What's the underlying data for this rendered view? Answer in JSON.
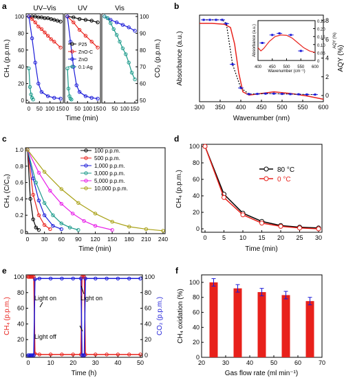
{
  "panels": {
    "a": {
      "letter": "a",
      "subtitles": [
        "UV–Vis",
        "UV",
        "Vis"
      ],
      "ylabel": "CH₄ (p.p.m.)",
      "ylabel_right": "CO₂ (p.p.m.)",
      "xlabel": "Time (min)",
      "ticks_left": [
        "0",
        "20",
        "40",
        "60",
        "80",
        "100"
      ],
      "ticks_right": [
        "50",
        "60",
        "70",
        "80",
        "90",
        "100"
      ],
      "ticks_x": [
        "0",
        "50",
        "100",
        "150"
      ],
      "legend": [
        "P25",
        "ZnO-C",
        "ZnO",
        "0.1-Ag"
      ]
    },
    "b": {
      "letter": "b",
      "xlabel": "Wavenumber (nm)",
      "ylabel": "Absorbance (a.u.)",
      "ylabel_right": "AQY (%)",
      "ticks_x": [
        "300",
        "350",
        "400",
        "450",
        "500",
        "550",
        "600"
      ],
      "ticks_right": [
        "0",
        "2",
        "4",
        "6",
        "8"
      ],
      "inset": {
        "xlabel": "Wavenumber (cm⁻¹)",
        "ylabel": "Absorbance (a.u.)",
        "ylabel_right": "AQY (%)",
        "ticks_x": [
          "400",
          "450",
          "500",
          "550",
          "600"
        ],
        "ticks_right": [
          "0",
          "0.05",
          "0.10",
          "0.15",
          "0.20",
          "0.25"
        ]
      }
    },
    "c": {
      "letter": "c",
      "xlabel": "Time (min)",
      "ylabel": "CH₄ (C/C₀)",
      "ticks_x": [
        "0",
        "30",
        "60",
        "90",
        "120",
        "150",
        "180",
        "210",
        "240"
      ],
      "ticks_y": [
        "0",
        "0.2",
        "0.4",
        "0.6",
        "0.8",
        "1.0"
      ],
      "legend": [
        "100 p.p.m.",
        "500 p.p.m.",
        "1,000 p.p.m.",
        "3,000 p.p.m.",
        "5,000 p.p.m.",
        "10,000 p.p.m."
      ]
    },
    "d": {
      "letter": "d",
      "xlabel": "Time (min)",
      "ylabel": "CH₄ (p.p.m.)",
      "ticks_x": [
        "0",
        "5",
        "10",
        "15",
        "20",
        "25",
        "30"
      ],
      "ticks_y": [
        "0",
        "20",
        "40",
        "60",
        "80",
        "100"
      ],
      "legend": [
        "80 °C",
        "0 °C"
      ]
    },
    "e": {
      "letter": "e",
      "xlabel": "Time (h)",
      "ylabel": "CH₄ (p.p.m.)",
      "ylabel_right": "CO₂ (p.p.m.)",
      "ticks_x": [
        "0",
        "10",
        "20",
        "30",
        "40",
        "50"
      ],
      "ticks_y": [
        "0",
        "20",
        "40",
        "60",
        "80",
        "100"
      ],
      "ticks_right": [
        "0",
        "20",
        "40",
        "60",
        "80",
        "100"
      ],
      "annotations": [
        "Light on",
        "Light off",
        "Light on"
      ]
    },
    "f": {
      "letter": "f",
      "xlabel": "Gas flow rate (ml min⁻¹)",
      "ylabel": "CH₄ oxidation (%)",
      "ticks_x": [
        "20",
        "30",
        "40",
        "50",
        "60",
        "70"
      ],
      "ticks_y": [
        "0",
        "20",
        "40",
        "60",
        "80",
        "100"
      ]
    }
  },
  "colors": {
    "black": "#000000",
    "red": "#e8211b",
    "blue": "#1a1ad8",
    "teal": "#1a9a8a",
    "magenta": "#e81ee8",
    "olive": "#a8a014",
    "grid": "#000000"
  },
  "chart_data": [
    {
      "panel": "a",
      "type": "line",
      "sub_panels": [
        "UV–Vis",
        "UV",
        "Vis"
      ],
      "xlim": [
        0,
        160
      ],
      "ylim": [
        0,
        100
      ],
      "ylim_right": [
        50,
        100
      ],
      "series": [
        {
          "name": "P25",
          "panel": "UV–Vis",
          "x": [
            0,
            15,
            30,
            45,
            60,
            75,
            90,
            105,
            120,
            135,
            150
          ],
          "y": [
            100,
            100,
            100,
            99,
            99,
            98,
            98,
            97,
            96,
            95,
            94
          ]
        },
        {
          "name": "ZnO-C",
          "panel": "UV–Vis",
          "x": [
            0,
            15,
            30,
            45,
            60,
            75,
            90,
            105,
            120,
            150
          ],
          "y": [
            100,
            97,
            93,
            88,
            85,
            81,
            77,
            73,
            70,
            63
          ]
        },
        {
          "name": "ZnO",
          "panel": "UV–Vis",
          "x": [
            0,
            15,
            30,
            45,
            60,
            90,
            120,
            150
          ],
          "y": [
            100,
            74,
            45,
            20,
            10,
            5,
            3,
            2
          ]
        },
        {
          "name": "0.1-Ag",
          "panel": "UV–Vis",
          "x": [
            0,
            5,
            10,
            15,
            20
          ],
          "y": [
            38,
            16,
            7,
            3,
            1
          ]
        },
        {
          "name": "P25",
          "panel": "UV",
          "x": [
            0,
            30,
            60,
            90,
            120,
            150
          ],
          "y": [
            100,
            99,
            97,
            96,
            95,
            93
          ]
        },
        {
          "name": "ZnO-C",
          "panel": "UV",
          "x": [
            0,
            30,
            60,
            90,
            120,
            150
          ],
          "y": [
            100,
            93,
            84,
            77,
            70,
            63
          ]
        },
        {
          "name": "ZnO",
          "panel": "UV",
          "x": [
            0,
            15,
            30,
            45,
            60,
            90,
            120,
            150
          ],
          "y": [
            100,
            70,
            40,
            18,
            10,
            5,
            3,
            2
          ]
        },
        {
          "name": "0.1-Ag",
          "panel": "UV",
          "x": [
            0,
            5,
            10,
            15,
            20
          ],
          "y": [
            38,
            14,
            5,
            2,
            1
          ]
        },
        {
          "name": "ZnO",
          "panel": "Vis",
          "x": [
            0,
            15,
            30,
            60,
            90,
            120,
            150
          ],
          "y": [
            100,
            98,
            96,
            93,
            90,
            87,
            83
          ]
        },
        {
          "name": "0.1-Ag",
          "panel": "Vis",
          "x": [
            0,
            15,
            30,
            45,
            60,
            75,
            90,
            105,
            120,
            135,
            150
          ],
          "y": [
            100,
            98,
            92,
            85,
            78,
            70,
            62,
            55,
            45,
            33,
            25
          ]
        }
      ]
    },
    {
      "panel": "b",
      "type": "line",
      "xlim": [
        300,
        600
      ],
      "ylim_right": [
        0,
        8.5
      ],
      "series": [
        {
          "name": "Absorbance",
          "x": [
            300,
            330,
            360,
            375,
            385,
            395,
            405,
            420,
            450,
            480,
            520,
            560,
            600
          ],
          "y": [
            0.95,
            0.95,
            0.94,
            0.9,
            0.7,
            0.35,
            0.12,
            0.08,
            0.1,
            0.12,
            0.1,
            0.07,
            0.03
          ]
        },
        {
          "name": "AQY",
          "x": [
            310,
            325,
            340,
            355,
            365,
            380,
            400,
            420,
            440,
            460,
            480,
            500,
            520,
            540,
            560,
            580
          ],
          "y": [
            8.0,
            8.0,
            8.0,
            8.0,
            7.6,
            3.3,
            0.8,
            0.15,
            0.17,
            0.2,
            0.2,
            0.17,
            0.15,
            0.13,
            0.11,
            0.1
          ]
        }
      ],
      "inset": {
        "xlim": [
          400,
          600
        ],
        "ylim_right": [
          0,
          0.25
        ],
        "series": [
          {
            "name": "AQY",
            "x": [
              415,
              450,
              475,
              515,
              550
            ],
            "y": [
              0.11,
              0.16,
              0.17,
              0.16,
              0.06
            ]
          }
        ]
      }
    },
    {
      "panel": "c",
      "type": "line",
      "xlim": [
        0,
        240
      ],
      "ylim": [
        0,
        1.0
      ],
      "series": [
        {
          "name": "100 p.p.m.",
          "x": [
            0,
            5,
            10,
            15,
            20
          ],
          "y": [
            1.0,
            0.4,
            0.15,
            0.05,
            0.02
          ]
        },
        {
          "name": "500 p.p.m.",
          "x": [
            0,
            10,
            20,
            30,
            40
          ],
          "y": [
            1.0,
            0.45,
            0.2,
            0.08,
            0.03
          ]
        },
        {
          "name": "1,000 p.p.m.",
          "x": [
            0,
            10,
            20,
            30,
            45,
            60
          ],
          "y": [
            1.0,
            0.65,
            0.38,
            0.2,
            0.07,
            0.03
          ]
        },
        {
          "name": "3,000 p.p.m.",
          "x": [
            0,
            15,
            30,
            45,
            60,
            75,
            90
          ],
          "y": [
            1.0,
            0.6,
            0.35,
            0.2,
            0.1,
            0.05,
            0.02
          ]
        },
        {
          "name": "5,000 p.p.m.",
          "x": [
            0,
            20,
            40,
            60,
            80,
            100,
            120,
            150
          ],
          "y": [
            1.0,
            0.72,
            0.5,
            0.34,
            0.22,
            0.13,
            0.07,
            0.02
          ]
        },
        {
          "name": "10,000 p.p.m.",
          "x": [
            0,
            30,
            60,
            90,
            120,
            150,
            180,
            210,
            240
          ],
          "y": [
            1.0,
            0.73,
            0.52,
            0.35,
            0.22,
            0.12,
            0.06,
            0.03,
            0.01
          ]
        }
      ]
    },
    {
      "panel": "d",
      "type": "line",
      "xlim": [
        0,
        30
      ],
      "ylim": [
        0,
        100
      ],
      "series": [
        {
          "name": "80 °C",
          "x": [
            0,
            5,
            10,
            15,
            20,
            25,
            30
          ],
          "y": [
            100,
            42,
            19,
            9,
            4,
            2,
            1
          ]
        },
        {
          "name": "0 °C",
          "x": [
            0,
            5,
            10,
            15,
            20,
            25,
            30
          ],
          "y": [
            100,
            38,
            17,
            7,
            3,
            1,
            0
          ]
        }
      ]
    },
    {
      "panel": "e",
      "type": "line",
      "xlim": [
        0,
        50
      ],
      "ylim": [
        0,
        100
      ],
      "series": [
        {
          "name": "CH₄",
          "x": [
            0,
            0.5,
            1,
            1.5,
            2,
            2.5,
            3,
            5,
            10,
            15,
            20,
            23.5,
            24,
            24.5,
            25,
            25.5,
            30,
            35,
            40,
            45,
            50
          ],
          "y": [
            100,
            100,
            100,
            100,
            100,
            100,
            2,
            1,
            1,
            1,
            1,
            1,
            100,
            100,
            100,
            1,
            1,
            1,
            1,
            1,
            1
          ]
        },
        {
          "name": "CO₂",
          "x": [
            0,
            0.5,
            1,
            1.5,
            2,
            2.5,
            3,
            5,
            10,
            15,
            20,
            23.5,
            24,
            24.5,
            25,
            25.5,
            30,
            35,
            40,
            45,
            50
          ],
          "y": [
            0,
            0,
            0,
            0,
            0,
            0,
            97,
            98,
            98,
            98,
            98,
            98,
            0,
            0,
            0,
            98,
            98,
            98,
            98,
            98,
            98
          ]
        }
      ]
    },
    {
      "panel": "f",
      "type": "bar",
      "xlim": [
        20,
        70
      ],
      "ylim": [
        0,
        110
      ],
      "x": [
        25,
        35,
        45,
        55,
        65
      ],
      "values": [
        100,
        92,
        87,
        83,
        75
      ],
      "errors": [
        5,
        5,
        5,
        5,
        5
      ]
    }
  ]
}
